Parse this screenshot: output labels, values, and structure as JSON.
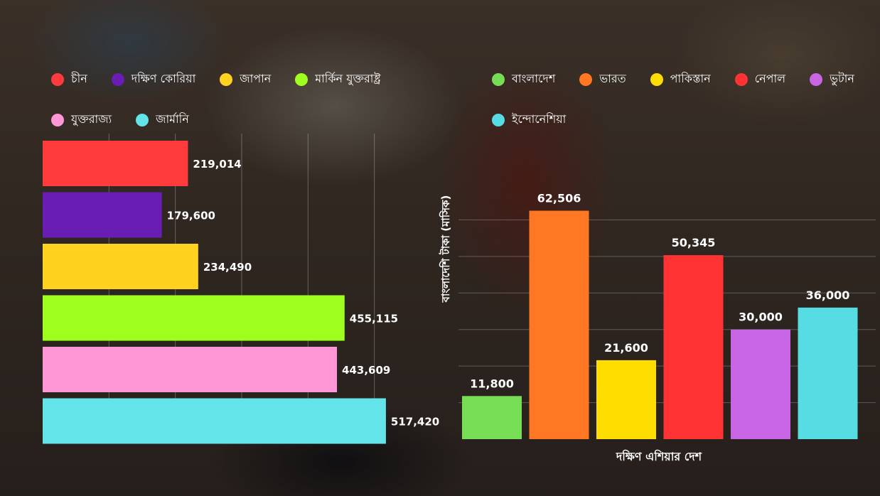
{
  "chart_data": [
    {
      "type": "bar",
      "orientation": "horizontal",
      "categories": [
        "চীন",
        "দক্ষিণ কোরিয়া",
        "জাপান",
        "মার্কিন যুক্তরাষ্ট্র",
        "যুক্তরাজ্য",
        "জার্মানি"
      ],
      "values": [
        219014,
        179600,
        234490,
        455115,
        443609,
        517420
      ],
      "value_labels": [
        "219,014",
        "179,600",
        "234,490",
        "455,115",
        "443,609",
        "517,420"
      ],
      "colors": [
        "#ff3b3b",
        "#6a1db5",
        "#ffd21f",
        "#9eff1f",
        "#ff97d6",
        "#62e4e8"
      ],
      "xlim": [
        0,
        600000
      ],
      "grid": true,
      "legend": "top"
    },
    {
      "type": "bar",
      "orientation": "vertical",
      "categories": [
        "বাংলাদেশ",
        "ভারত",
        "পাকিস্তান",
        "নেপাল",
        "ভুটান",
        "ইন্দোনেশিয়া"
      ],
      "values": [
        11800,
        62506,
        21600,
        50345,
        30000,
        36000
      ],
      "value_labels": [
        "11,800",
        "62,506",
        "21,600",
        "50,345",
        "30,000",
        "36,000"
      ],
      "colors": [
        "#77dd55",
        "#ff7722",
        "#ffdd00",
        "#ff3333",
        "#c865e5",
        "#55dde3"
      ],
      "ylim": [
        0,
        70000
      ],
      "xlabel": "দক্ষিণ এশিয়ার দেশ",
      "ylabel": "বাংলাদেশি টাকা (মাসিক)",
      "grid": true,
      "legend": "top"
    }
  ]
}
